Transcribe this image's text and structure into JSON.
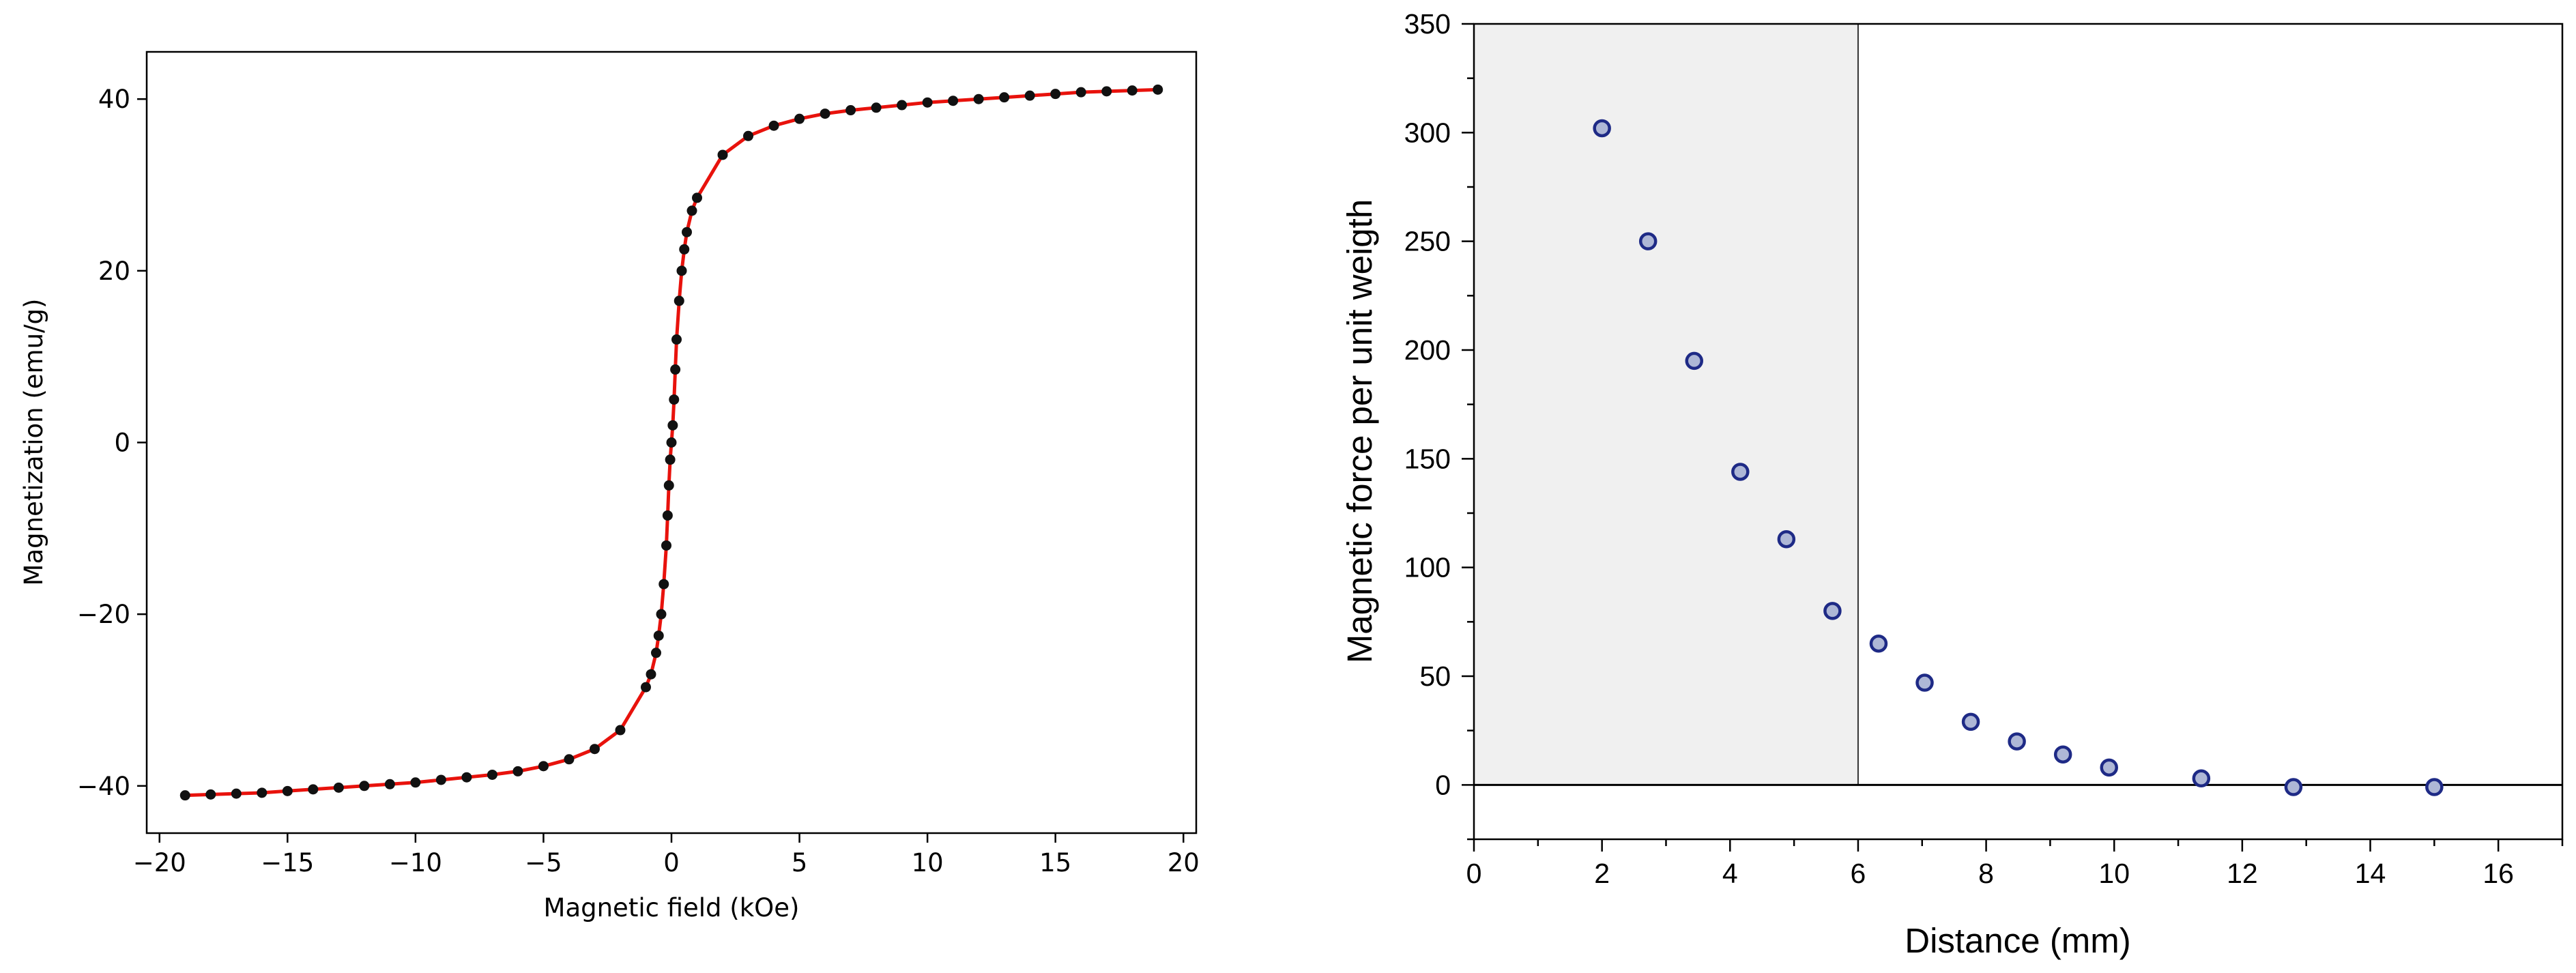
{
  "chart_data": [
    {
      "type": "scatter",
      "xlabel": "Magnetic field (kOe)",
      "ylabel": "Magnetization (emu/g)",
      "xlim": [
        -20.5,
        20.5
      ],
      "ylim": [
        -45.5,
        45.5
      ],
      "xticks": [
        -20,
        -15,
        -10,
        -5,
        0,
        5,
        10,
        15,
        20
      ],
      "xtick_labels": [
        "−20",
        "−15",
        "−10",
        "−5",
        "0",
        "5",
        "10",
        "15",
        "20"
      ],
      "yticks": [
        -40,
        -20,
        0,
        20,
        40
      ],
      "ytick_labels": [
        "−40",
        "−20",
        "0",
        "20",
        "40"
      ],
      "grid": false,
      "colors": {
        "points": "#111111",
        "fit": "#e8120c"
      },
      "series": [
        {
          "kind": "points",
          "x": [
            -19,
            -18,
            -17,
            -16,
            -15,
            -14,
            -13,
            -12,
            -11,
            -10,
            -9,
            -8,
            -7,
            -6,
            -5,
            -4,
            -3,
            -2,
            -1,
            -0.8,
            -0.6,
            -0.5,
            -0.4,
            -0.3,
            -0.2,
            -0.15,
            -0.1,
            -0.05,
            0,
            0.05,
            0.1,
            0.15,
            0.2,
            0.3,
            0.4,
            0.5,
            0.6,
            0.8,
            1,
            2,
            3,
            4,
            5,
            6,
            7,
            8,
            9,
            10,
            11,
            12,
            13,
            14,
            15,
            16,
            17,
            18,
            19
          ],
          "y": [
            -41.1,
            -41,
            -40.9,
            -40.8,
            -40.6,
            -40.4,
            -40.2,
            -40,
            -39.8,
            -39.6,
            -39.3,
            -39,
            -38.7,
            -38.3,
            -37.7,
            -36.9,
            -35.7,
            -33.5,
            -28.5,
            -27,
            -24.5,
            -22.5,
            -20,
            -16.5,
            -12,
            -8.5,
            -5,
            -2,
            0,
            2,
            5,
            8.5,
            12,
            16.5,
            20,
            22.5,
            24.5,
            27,
            28.5,
            33.5,
            35.7,
            36.9,
            37.7,
            38.3,
            38.7,
            39,
            39.3,
            39.6,
            39.8,
            40,
            40.2,
            40.4,
            40.6,
            40.8,
            40.9,
            41,
            41.1
          ]
        },
        {
          "kind": "fit",
          "x": [
            -19,
            -18,
            -17,
            -16,
            -15,
            -14,
            -13,
            -12,
            -11,
            -10,
            -9,
            -8,
            -7,
            -6,
            -5,
            -4,
            -3,
            -2,
            -1,
            -0.8,
            -0.6,
            -0.5,
            -0.4,
            -0.3,
            -0.2,
            -0.15,
            -0.1,
            -0.05,
            0,
            0.05,
            0.1,
            0.15,
            0.2,
            0.3,
            0.4,
            0.5,
            0.6,
            0.8,
            1,
            2,
            3,
            4,
            5,
            6,
            7,
            8,
            9,
            10,
            11,
            12,
            13,
            14,
            15,
            16,
            17,
            18,
            19
          ],
          "y": [
            -41.1,
            -41,
            -40.9,
            -40.8,
            -40.6,
            -40.4,
            -40.2,
            -40,
            -39.8,
            -39.6,
            -39.3,
            -39,
            -38.7,
            -38.3,
            -37.7,
            -36.9,
            -35.7,
            -33.5,
            -28.5,
            -27,
            -24.5,
            -22.5,
            -20,
            -16.5,
            -12,
            -8.5,
            -5,
            -2,
            0,
            2,
            5,
            8.5,
            12,
            16.5,
            20,
            22.5,
            24.5,
            27,
            28.5,
            33.5,
            35.7,
            36.9,
            37.7,
            38.3,
            38.7,
            39,
            39.3,
            39.6,
            39.8,
            40,
            40.2,
            40.4,
            40.6,
            40.8,
            40.9,
            41,
            41.1
          ]
        }
      ]
    },
    {
      "type": "scatter",
      "xlabel": "Distance (mm)",
      "ylabel": "Magnetic force per unit weigth",
      "xlim": [
        0,
        17
      ],
      "ylim": [
        -25,
        350
      ],
      "xticks": [
        0,
        2,
        4,
        6,
        8,
        10,
        12,
        14,
        16
      ],
      "xtick_labels": [
        "0",
        "2",
        "4",
        "6",
        "8",
        "10",
        "12",
        "14",
        "16"
      ],
      "yticks": [
        0,
        50,
        100,
        150,
        200,
        250,
        300,
        350
      ],
      "ytick_labels": [
        "0",
        "50",
        "100",
        "150",
        "200",
        "250",
        "300",
        "350"
      ],
      "shaded_region_x": [
        0,
        6
      ],
      "zero_line": true,
      "grid": false,
      "colors": {
        "marker_fill": "#aeb7d6",
        "marker_edge": "#1e2a86",
        "shade": "#f0f0f0"
      },
      "x": [
        2,
        2.72,
        3.44,
        4.16,
        4.88,
        5.6,
        6.32,
        7.04,
        7.76,
        8.48,
        9.2,
        9.92,
        11.36,
        12.8,
        15
      ],
      "y": [
        302,
        250,
        195,
        144,
        113,
        80,
        65,
        47,
        29,
        20,
        14,
        8,
        3,
        -1,
        -1
      ]
    }
  ]
}
